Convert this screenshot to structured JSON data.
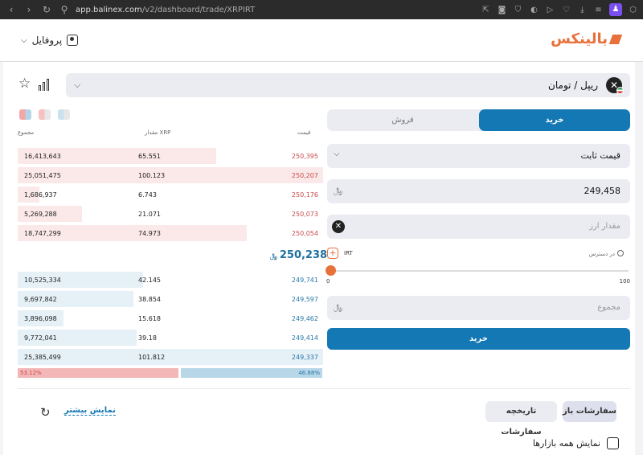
{
  "browser": {
    "url_host": "app.balinex.com",
    "url_path": "/v2/dashboard/trade/XRPIRT"
  },
  "header": {
    "logo": "بالینکس",
    "profile_label": "پروفایل"
  },
  "market": {
    "name": "ریپل / تومان"
  },
  "orderbook": {
    "headers": {
      "price": "قیمت",
      "amount": "مقدار XRP",
      "total": "مجموع"
    },
    "asks": [
      {
        "price": "250,395",
        "amount": "65.551",
        "total": "16,413,643",
        "fill": 0.65
      },
      {
        "price": "250,207",
        "amount": "100.123",
        "total": "25,051,475",
        "fill": 1.0
      },
      {
        "price": "250,176",
        "amount": "6.743",
        "total": "1,686,937",
        "fill": 0.07
      },
      {
        "price": "250,073",
        "amount": "21.071",
        "total": "5,269,288",
        "fill": 0.21
      },
      {
        "price": "250,054",
        "amount": "74.973",
        "total": "18,747,299",
        "fill": 0.75
      }
    ],
    "last_price": "250,238",
    "bids": [
      {
        "price": "249,741",
        "amount": "42.145",
        "total": "10,525,334",
        "fill": 0.41
      },
      {
        "price": "249,597",
        "amount": "38.854",
        "total": "9,697,842",
        "fill": 0.38
      },
      {
        "price": "249,462",
        "amount": "15.618",
        "total": "3,896,098",
        "fill": 0.15
      },
      {
        "price": "249,414",
        "amount": "39.18",
        "total": "9,772,041",
        "fill": 0.39
      },
      {
        "price": "249,337",
        "amount": "101.812",
        "total": "25,385,499",
        "fill": 1.0
      }
    ],
    "sell_ratio": "53.12%",
    "buy_ratio": "46.88%"
  },
  "trade": {
    "tab_buy": "خرید",
    "tab_sell": "فروش",
    "order_type": "قیمت ثابت",
    "price_value": "249,458",
    "amount_placeholder": "مقدار ارز",
    "currency": "IRT",
    "available_label": "در دسترس",
    "slider_min": "0",
    "slider_max": "100",
    "total_placeholder": "مجموع",
    "submit_label": "خرید"
  },
  "orders": {
    "open_tab": "سفارشات باز",
    "history_tab": "تاریخچه سفارشات",
    "show_more": "نمایش بیشتر",
    "show_all_markets": "نمایش همه بازارها"
  }
}
